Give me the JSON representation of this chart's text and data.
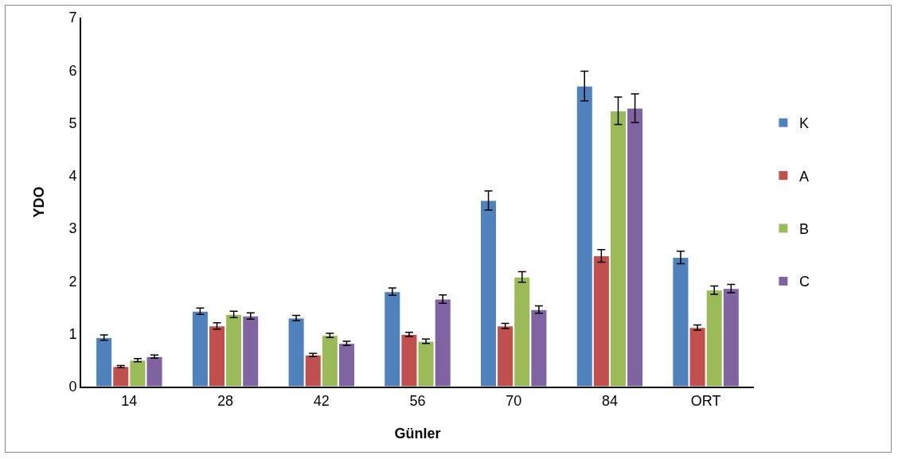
{
  "chart_data": {
    "type": "bar",
    "xlabel": "Günler",
    "ylabel": "YDO",
    "categories": [
      "14",
      "28",
      "42",
      "56",
      "70",
      "84",
      "ORT"
    ],
    "ylim": [
      0,
      7
    ],
    "yticks": [
      0,
      1,
      2,
      3,
      4,
      5,
      6,
      7
    ],
    "grid": false,
    "legend": "right",
    "series": [
      {
        "name": "K",
        "color": "#4f81bd",
        "values": [
          0.93,
          1.43,
          1.3,
          1.8,
          3.53,
          5.7,
          2.45
        ],
        "errors": [
          0.05,
          0.06,
          0.05,
          0.07,
          0.18,
          0.28,
          0.12
        ]
      },
      {
        "name": "A",
        "color": "#c0504d",
        "values": [
          0.38,
          1.15,
          0.6,
          0.99,
          1.15,
          2.48,
          1.12
        ],
        "errors": [
          0.02,
          0.06,
          0.03,
          0.04,
          0.05,
          0.12,
          0.05
        ]
      },
      {
        "name": "B",
        "color": "#9bbb59",
        "values": [
          0.5,
          1.37,
          0.97,
          0.86,
          2.08,
          5.23,
          1.83
        ],
        "errors": [
          0.03,
          0.06,
          0.04,
          0.04,
          0.1,
          0.26,
          0.08
        ]
      },
      {
        "name": "C",
        "color": "#8064a2",
        "values": [
          0.57,
          1.34,
          0.82,
          1.66,
          1.46,
          5.28,
          1.86
        ],
        "errors": [
          0.03,
          0.06,
          0.04,
          0.08,
          0.07,
          0.27,
          0.08
        ]
      }
    ]
  }
}
